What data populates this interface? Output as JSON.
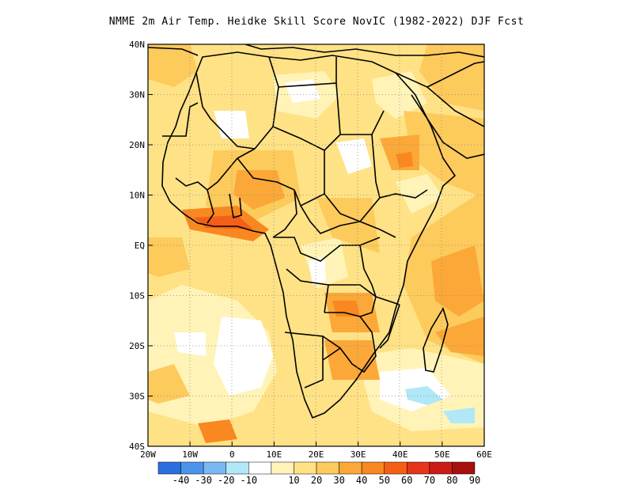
{
  "title": "NMME  2m Air Temp. Heidke Skill Score NovIC (1982-2022) DJF Fcst",
  "map": {
    "lat_labels": [
      "40N",
      "30N",
      "20N",
      "10N",
      "EQ",
      "10S",
      "20S",
      "30S",
      "40S"
    ],
    "lon_labels": [
      "20W",
      "10W",
      "0",
      "10E",
      "20E",
      "30E",
      "40E",
      "50E",
      "60E"
    ]
  },
  "colorbar": {
    "colors": [
      "#2a6fe0",
      "#4a95ea",
      "#7ab8f3",
      "#b0e8f7",
      "#ffffff",
      "#fff3b8",
      "#ffe286",
      "#fdca5c",
      "#fba838",
      "#f98820",
      "#f45f17",
      "#e5351a",
      "#c81c15",
      "#a60f0d"
    ],
    "labels": [
      "-40",
      "-30",
      "-20",
      "-10",
      "10",
      "20",
      "30",
      "40",
      "50",
      "60",
      "70",
      "80",
      "90"
    ]
  }
}
